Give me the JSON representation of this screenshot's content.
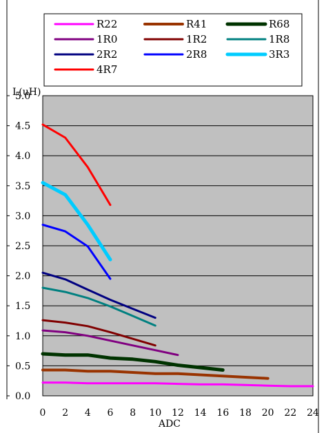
{
  "chart_data": {
    "type": "line",
    "title": "",
    "xlabel": "ADC",
    "ylabel": "L(uH)",
    "xlim": [
      0,
      24
    ],
    "ylim": [
      0,
      5.0
    ],
    "x_ticks": [
      "0",
      "2",
      "4",
      "6",
      "8",
      "10",
      "12",
      "14",
      "16",
      "18",
      "20",
      "22",
      "24"
    ],
    "y_ticks": [
      "0.0",
      "0.5",
      "1.0",
      "1.5",
      "2.0",
      "2.5",
      "3.0",
      "3.5",
      "4.0",
      "4.5",
      "5.0"
    ],
    "grid": "horizontal",
    "plot_background": "#c0c0c0",
    "legend_position": "top",
    "series": [
      {
        "name": "R22",
        "color": "#ff00ff",
        "width": 3,
        "x": [
          0,
          2,
          4,
          6,
          8,
          10,
          12,
          14,
          16,
          18,
          20,
          22,
          24
        ],
        "y": [
          0.22,
          0.22,
          0.21,
          0.21,
          0.21,
          0.21,
          0.2,
          0.19,
          0.19,
          0.18,
          0.17,
          0.16,
          0.16
        ]
      },
      {
        "name": "R41",
        "color": "#993300",
        "width": 4,
        "x": [
          0,
          2,
          4,
          6,
          8,
          10,
          12,
          14,
          16,
          18,
          20
        ],
        "y": [
          0.43,
          0.43,
          0.41,
          0.41,
          0.39,
          0.37,
          0.37,
          0.35,
          0.33,
          0.31,
          0.29
        ]
      },
      {
        "name": "R68",
        "color": "#003300",
        "width": 5,
        "x": [
          0,
          2,
          4,
          6,
          8,
          10,
          12,
          14,
          16
        ],
        "y": [
          0.7,
          0.68,
          0.68,
          0.63,
          0.61,
          0.57,
          0.51,
          0.47,
          0.43
        ]
      },
      {
        "name": "1R0",
        "color": "#800080",
        "width": 3,
        "x": [
          0,
          2,
          4,
          6,
          8,
          10,
          12
        ],
        "y": [
          1.09,
          1.06,
          1.0,
          0.92,
          0.84,
          0.76,
          0.68
        ]
      },
      {
        "name": "1R2",
        "color": "#800000",
        "width": 3,
        "x": [
          0,
          2,
          4,
          6,
          8,
          10
        ],
        "y": [
          1.26,
          1.22,
          1.16,
          1.06,
          0.95,
          0.84
        ]
      },
      {
        "name": "1R8",
        "color": "#008080",
        "width": 3,
        "x": [
          0,
          2,
          4,
          6,
          8,
          10
        ],
        "y": [
          1.8,
          1.73,
          1.63,
          1.49,
          1.33,
          1.17
        ]
      },
      {
        "name": "2R2",
        "color": "#000080",
        "width": 3,
        "x": [
          0,
          2,
          4,
          6,
          8,
          10
        ],
        "y": [
          2.05,
          1.94,
          1.77,
          1.6,
          1.45,
          1.3
        ]
      },
      {
        "name": "2R8",
        "color": "#0000ff",
        "width": 3,
        "x": [
          0,
          2,
          4,
          6
        ],
        "y": [
          2.85,
          2.74,
          2.49,
          1.95
        ]
      },
      {
        "name": "3R3",
        "color": "#00ccff",
        "width": 5,
        "x": [
          0,
          2,
          4,
          6
        ],
        "y": [
          3.55,
          3.35,
          2.85,
          2.27
        ]
      },
      {
        "name": "4R7",
        "color": "#ff0000",
        "width": 3,
        "x": [
          0,
          2,
          4,
          6
        ],
        "y": [
          4.52,
          4.3,
          3.81,
          3.18
        ]
      }
    ]
  }
}
